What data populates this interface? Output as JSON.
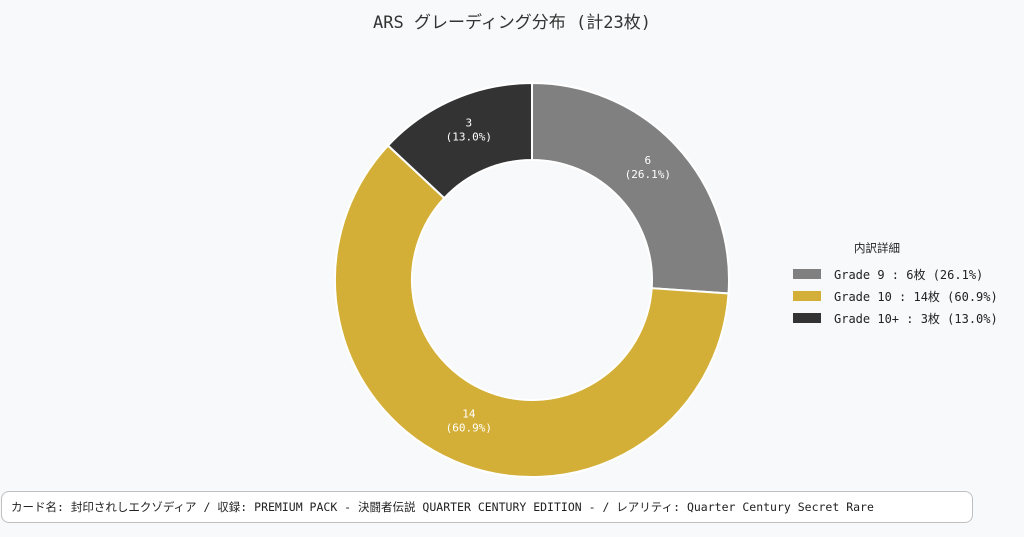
{
  "chart_data": {
    "type": "pie",
    "title": "ARS グレーディング分布 (計23枚)",
    "categories": [
      "Grade 9",
      "Grade 10",
      "Grade 10+"
    ],
    "values": [
      6,
      14,
      3
    ],
    "percent_labels": [
      "26.1%",
      "60.9%",
      "13.0%"
    ],
    "value_labels": [
      "6",
      "14",
      "3"
    ],
    "colors": [
      "#808080",
      "#d4af37",
      "#333333"
    ],
    "donut": true,
    "legend_title": "内訳詳細",
    "legend_entries": [
      "Grade 9 : 6枚 (26.1%)",
      "Grade 10 : 14枚 (60.9%)",
      "Grade 10+ : 3枚 (13.0%)"
    ],
    "legend_position": "right"
  },
  "info": {
    "text": "カード名: 封印されしエクゾディア  /  収録: PREMIUM PACK - 決闘者伝説 QUARTER CENTURY EDITION -  /  レアリティ: Quarter Century Secret Rare"
  }
}
